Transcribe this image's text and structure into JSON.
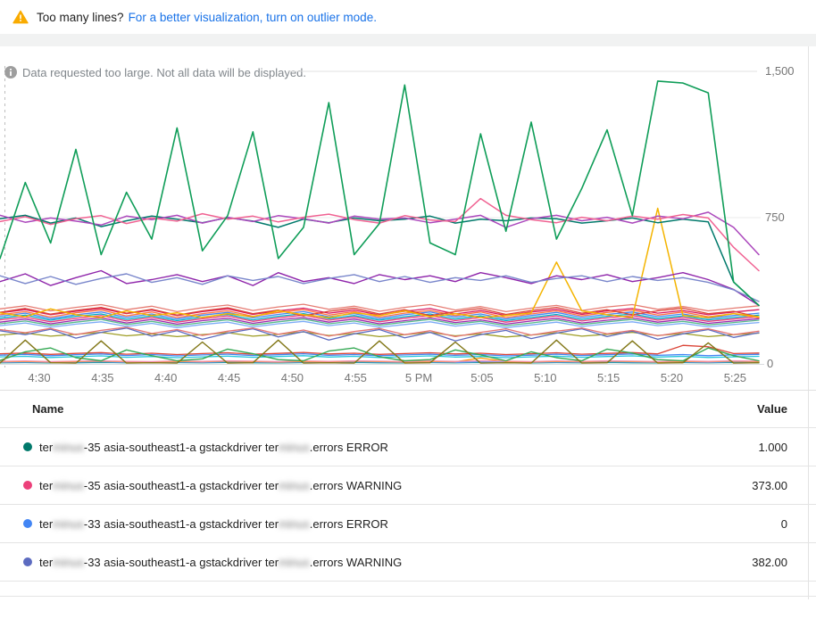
{
  "banner": {
    "warning_icon": "warning-triangle-icon",
    "warning_color": "#F9AB00",
    "text": "Too many lines?",
    "link_text": "For a better visualization, turn on outlier mode.",
    "link_color": "#1A73E8"
  },
  "notice": {
    "icon": "info-icon",
    "text": "Data requested too large. Not all data will be displayed."
  },
  "chart_data": {
    "type": "line",
    "title": "",
    "xlabel": "",
    "ylabel": "",
    "ylim": [
      0,
      1500
    ],
    "grid": "horizontal",
    "y_tick_labels": [
      "0",
      "750",
      "1,500"
    ],
    "x_labels": [
      "4:30",
      "4:35",
      "4:40",
      "4:45",
      "4:50",
      "4:55",
      "5 PM",
      "5:05",
      "5:10",
      "5:15",
      "5:20",
      "5:25"
    ],
    "series": [
      {
        "id": "flat-teal",
        "color": "#009688",
        "width": 1.3,
        "values": [
          6,
          7,
          5,
          6,
          8,
          6,
          5,
          7,
          6,
          8,
          6,
          5,
          7,
          6,
          8,
          6,
          5,
          7,
          6,
          8,
          6,
          5,
          7,
          6,
          8,
          6,
          5,
          7,
          6,
          8,
          6
        ]
      },
      {
        "id": "flat-blue",
        "color": "#5E97F6",
        "width": 1.3,
        "values": [
          8,
          10,
          7,
          9,
          11,
          8,
          7,
          10,
          8,
          11,
          9,
          7,
          10,
          8,
          11,
          9,
          7,
          10,
          8,
          11,
          9,
          7,
          10,
          8,
          11,
          9,
          7,
          10,
          8,
          11,
          9
        ]
      },
      {
        "id": "flat-orange",
        "color": "#FF9800",
        "width": 1.3,
        "values": [
          11,
          13,
          10,
          12,
          14,
          11,
          10,
          13,
          11,
          14,
          12,
          10,
          13,
          11,
          14,
          12,
          10,
          13,
          11,
          30,
          12,
          10,
          13,
          11,
          14,
          12,
          10,
          13,
          11,
          14,
          12
        ]
      },
      {
        "id": "flat-pink",
        "color": "#F48FB1",
        "width": 1.3,
        "values": [
          13,
          15,
          12,
          14,
          16,
          13,
          12,
          15,
          13,
          16,
          14,
          12,
          15,
          13,
          16,
          14,
          12,
          15,
          13,
          16,
          14,
          12,
          15,
          13,
          16,
          14,
          12,
          15,
          13,
          16,
          14
        ]
      },
      {
        "id": "cyan-36",
        "color": "#26C6DA",
        "width": 1.3,
        "values": [
          36,
          39,
          33,
          37,
          41,
          34,
          38,
          32,
          36,
          40,
          34,
          38,
          42,
          35,
          39,
          33,
          37,
          41,
          35,
          38,
          32,
          36,
          40,
          34,
          38,
          41,
          35,
          39,
          33,
          36,
          39
        ]
      },
      {
        "id": "blue-45",
        "color": "#4285F4",
        "width": 1.3,
        "values": [
          45,
          49,
          42,
          47,
          51,
          43,
          48,
          41,
          46,
          50,
          43,
          47,
          52,
          44,
          48,
          42,
          46,
          50,
          44,
          48,
          41,
          45,
          50,
          43,
          47,
          51,
          44,
          48,
          42,
          46,
          49
        ]
      },
      {
        "id": "red-52",
        "color": "#DB4437",
        "width": 1.3,
        "values": [
          52,
          56,
          49,
          54,
          58,
          50,
          55,
          48,
          53,
          57,
          50,
          54,
          59,
          51,
          55,
          49,
          53,
          57,
          51,
          55,
          48,
          52,
          57,
          50,
          54,
          58,
          51,
          95,
          88,
          53,
          56
        ]
      },
      {
        "id": "green-low",
        "color": "#34A853",
        "width": 1.4,
        "values": [
          18,
          62,
          82,
          32,
          16,
          72,
          42,
          16,
          26,
          76,
          52,
          22,
          16,
          66,
          82,
          36,
          16,
          22,
          72,
          46,
          16,
          62,
          32,
          16,
          76,
          56,
          22,
          16,
          82,
          42,
          16
        ]
      },
      {
        "id": "olive-zigzag",
        "color": "#827717",
        "width": 1.4,
        "values": [
          4,
          122,
          6,
          4,
          118,
          4,
          6,
          4,
          112,
          4,
          6,
          122,
          4,
          6,
          4,
          118,
          4,
          6,
          112,
          4,
          6,
          4,
          122,
          4,
          6,
          118,
          4,
          6,
          108,
          4,
          6
        ]
      },
      {
        "id": "olive-150",
        "color": "#9E9D24",
        "width": 1.3,
        "values": [
          148,
          158,
          142,
          152,
          162,
          144,
          154,
          140,
          150,
          160,
          142,
          152,
          164,
          146,
          156,
          140,
          150,
          162,
          144,
          154,
          138,
          148,
          160,
          142,
          152,
          162,
          146,
          156,
          140,
          150,
          158
        ]
      },
      {
        "id": "indigo-160",
        "color": "#5C6BC0",
        "width": 1.3,
        "values": [
          170,
          150,
          178,
          132,
          162,
          184,
          142,
          170,
          126,
          158,
          180,
          138,
          166,
          122,
          154,
          176,
          134,
          162,
          118,
          150,
          172,
          130,
          158,
          180,
          140,
          168,
          126,
          154,
          176,
          136,
          160
        ]
      },
      {
        "id": "salmon-170",
        "color": "#E57373",
        "width": 1.3,
        "values": [
          176,
          160,
          182,
          150,
          172,
          188,
          156,
          176,
          146,
          168,
          184,
          152,
          174,
          142,
          166,
          182,
          150,
          170,
          140,
          162,
          180,
          148,
          168,
          184,
          154,
          172,
          144,
          164,
          180,
          150,
          168
        ]
      },
      {
        "id": "ltblue-200",
        "color": "#7BAAF7",
        "width": 1.3,
        "values": [
          196,
          210,
          188,
          204,
          216,
          192,
          208,
          186,
          202,
          214,
          190,
          206,
          218,
          196,
          210,
          188,
          202,
          216,
          194,
          208,
          186,
          200,
          214,
          192,
          206,
          216,
          196,
          208,
          190,
          202,
          212
        ]
      },
      {
        "id": "green-210",
        "color": "#57BB8A",
        "width": 1.3,
        "values": [
          206,
          220,
          198,
          214,
          228,
          202,
          218,
          196,
          212,
          226,
          200,
          216,
          230,
          206,
          220,
          198,
          214,
          228,
          204,
          218,
          196,
          210,
          226,
          202,
          216,
          228,
          206,
          218,
          200,
          212,
          224
        ]
      },
      {
        "id": "purple-220",
        "color": "#9C27B0",
        "width": 1.3,
        "values": [
          214,
          230,
          206,
          224,
          236,
          210,
          228,
          204,
          222,
          234,
          208,
          226,
          238,
          214,
          230,
          206,
          222,
          236,
          212,
          226,
          204,
          220,
          234,
          210,
          224,
          236,
          214,
          228,
          208,
          220,
          232
        ]
      },
      {
        "id": "pink-230",
        "color": "#EC407A",
        "width": 1.3,
        "values": [
          226,
          240,
          216,
          234,
          248,
          220,
          238,
          214,
          232,
          246,
          218,
          236,
          250,
          224,
          240,
          216,
          234,
          248,
          222,
          238,
          214,
          230,
          246,
          220,
          236,
          248,
          224,
          238,
          218,
          230,
          242
        ]
      },
      {
        "id": "cyan-240",
        "color": "#00ACC1",
        "width": 1.3,
        "values": [
          234,
          250,
          224,
          244,
          256,
          228,
          246,
          222,
          240,
          254,
          226,
          244,
          258,
          232,
          248,
          224,
          242,
          256,
          230,
          246,
          222,
          238,
          254,
          228,
          244,
          256,
          232,
          246,
          226,
          238,
          250
        ]
      },
      {
        "id": "blue-250",
        "color": "#4285F4",
        "width": 1.3,
        "values": [
          244,
          260,
          232,
          252,
          266,
          238,
          256,
          230,
          250,
          264,
          236,
          254,
          268,
          242,
          258,
          232,
          252,
          266,
          240,
          256,
          230,
          248,
          264,
          238,
          254,
          266,
          242,
          256,
          234,
          248,
          260
        ]
      },
      {
        "id": "orange-260",
        "color": "#FF7043",
        "width": 1.3,
        "values": [
          252,
          268,
          240,
          262,
          276,
          246,
          266,
          238,
          258,
          272,
          244,
          264,
          278,
          250,
          268,
          240,
          260,
          274,
          248,
          266,
          238,
          256,
          272,
          246,
          264,
          276,
          250,
          266,
          242,
          258,
          236
        ]
      },
      {
        "id": "magenta-270",
        "color": "#D81B60",
        "width": 1.3,
        "values": [
          262,
          278,
          252,
          270,
          284,
          258,
          276,
          248,
          268,
          282,
          254,
          272,
          286,
          260,
          276,
          250,
          270,
          284,
          256,
          274,
          248,
          266,
          280,
          254,
          272,
          284,
          260,
          274,
          252,
          266,
          278
        ]
      },
      {
        "id": "red-280",
        "color": "#DB4437",
        "width": 1.3,
        "values": [
          265,
          285,
          255,
          275,
          290,
          260,
          280,
          250,
          272,
          288,
          258,
          276,
          246,
          270,
          286,
          256,
          278,
          248,
          268,
          284,
          254,
          274,
          290,
          260,
          278,
          252,
          272,
          286,
          258,
          270,
          240
        ]
      },
      {
        "id": "salmon-290",
        "color": "#E67C73",
        "width": 1.3,
        "values": [
          282,
          298,
          272,
          290,
          304,
          278,
          296,
          268,
          288,
          302,
          274,
          292,
          306,
          280,
          296,
          270,
          290,
          304,
          276,
          294,
          268,
          286,
          300,
          274,
          292,
          304,
          280,
          294,
          272,
          286,
          298
        ]
      },
      {
        "id": "yellow-spike",
        "color": "#F4B400",
        "width": 1.5,
        "values": [
          262,
          242,
          282,
          252,
          238,
          272,
          248,
          262,
          238,
          258,
          242,
          272,
          252,
          238,
          262,
          248,
          272,
          242,
          258,
          238,
          248,
          262,
          522,
          272,
          252,
          238,
          798,
          248,
          238,
          258,
          242
        ]
      },
      {
        "id": "purple-430",
        "color": "#8E24AA",
        "width": 1.4,
        "values": [
          422,
          462,
          402,
          442,
          478,
          412,
          432,
          458,
          422,
          452,
          402,
          468,
          422,
          442,
          412,
          458,
          432,
          452,
          422,
          468,
          442,
          412,
          452,
          432,
          458,
          422,
          442,
          468,
          432,
          382,
          300
        ]
      },
      {
        "id": "slate-430",
        "color": "#7986CB",
        "width": 1.4,
        "values": [
          452,
          412,
          448,
          408,
          438,
          462,
          418,
          442,
          408,
          452,
          428,
          448,
          412,
          438,
          458,
          422,
          448,
          418,
          442,
          428,
          452,
          418,
          438,
          452,
          422,
          448,
          428,
          442,
          418,
          380,
          320
        ]
      },
      {
        "id": "darkteal-750",
        "color": "#00796B",
        "width": 1.5,
        "values": [
          744,
          762,
          722,
          748,
          704,
          734,
          758,
          742,
          724,
          750,
          732,
          700,
          742,
          724,
          748,
          734,
          742,
          758,
          722,
          742,
          734,
          748,
          744,
          722,
          734,
          748,
          724,
          742,
          728,
          420,
          300
        ]
      },
      {
        "id": "purple-750",
        "color": "#AB47BC",
        "width": 1.5,
        "values": [
          762,
          726,
          748,
          732,
          712,
          758,
          740,
          762,
          722,
          752,
          730,
          760,
          744,
          722,
          758,
          742,
          748,
          724,
          742,
          762,
          700,
          744,
          762,
          734,
          752,
          722,
          758,
          744,
          778,
          700,
          560
        ]
      },
      {
        "id": "pink-750",
        "color": "#F06292",
        "width": 1.5,
        "values": [
          730,
          755,
          715,
          745,
          760,
          720,
          748,
          732,
          770,
          742,
          758,
          728,
          752,
          768,
          740,
          722,
          760,
          738,
          730,
          848,
          762,
          740,
          724,
          752,
          734,
          758,
          742,
          766,
          748,
          598,
          478
        ]
      },
      {
        "id": "green-spiky",
        "color": "#0F9D58",
        "width": 1.6,
        "values": [
          540,
          930,
          620,
          1100,
          560,
          880,
          640,
          1210,
          580,
          760,
          1190,
          540,
          700,
          1340,
          560,
          720,
          1430,
          620,
          560,
          1180,
          680,
          1240,
          640,
          900,
          1200,
          760,
          1450,
          1440,
          1390,
          420,
          300
        ]
      }
    ]
  },
  "table": {
    "columns": {
      "name": "Name",
      "value": "Value"
    },
    "rows": [
      {
        "dot_color": "#00796B",
        "name_parts": [
          {
            "text": "ter"
          },
          {
            "text": "minus",
            "redacted": true
          },
          {
            "text": "-35 asia-southeast1-a gstackdriver ter"
          },
          {
            "text": "minus",
            "redacted": true
          },
          {
            "text": ".errors ERROR"
          }
        ],
        "value": "1.000"
      },
      {
        "dot_color": "#EC407A",
        "name_parts": [
          {
            "text": "ter"
          },
          {
            "text": "minus",
            "redacted": true
          },
          {
            "text": "-35 asia-southeast1-a gstackdriver ter"
          },
          {
            "text": "minus",
            "redacted": true
          },
          {
            "text": ".errors WARNING"
          }
        ],
        "value": "373.00"
      },
      {
        "dot_color": "#4285F4",
        "name_parts": [
          {
            "text": "ter"
          },
          {
            "text": "minus",
            "redacted": true
          },
          {
            "text": "-33 asia-southeast1-a gstackdriver ter"
          },
          {
            "text": "minus",
            "redacted": true
          },
          {
            "text": ".errors ERROR"
          }
        ],
        "value": "0"
      },
      {
        "dot_color": "#5C6BC0",
        "name_parts": [
          {
            "text": "ter"
          },
          {
            "text": "minus",
            "redacted": true
          },
          {
            "text": "-33 asia-southeast1-a gstackdriver ter"
          },
          {
            "text": "minus",
            "redacted": true
          },
          {
            "text": ".errors WARNING"
          }
        ],
        "value": "382.00"
      }
    ]
  }
}
